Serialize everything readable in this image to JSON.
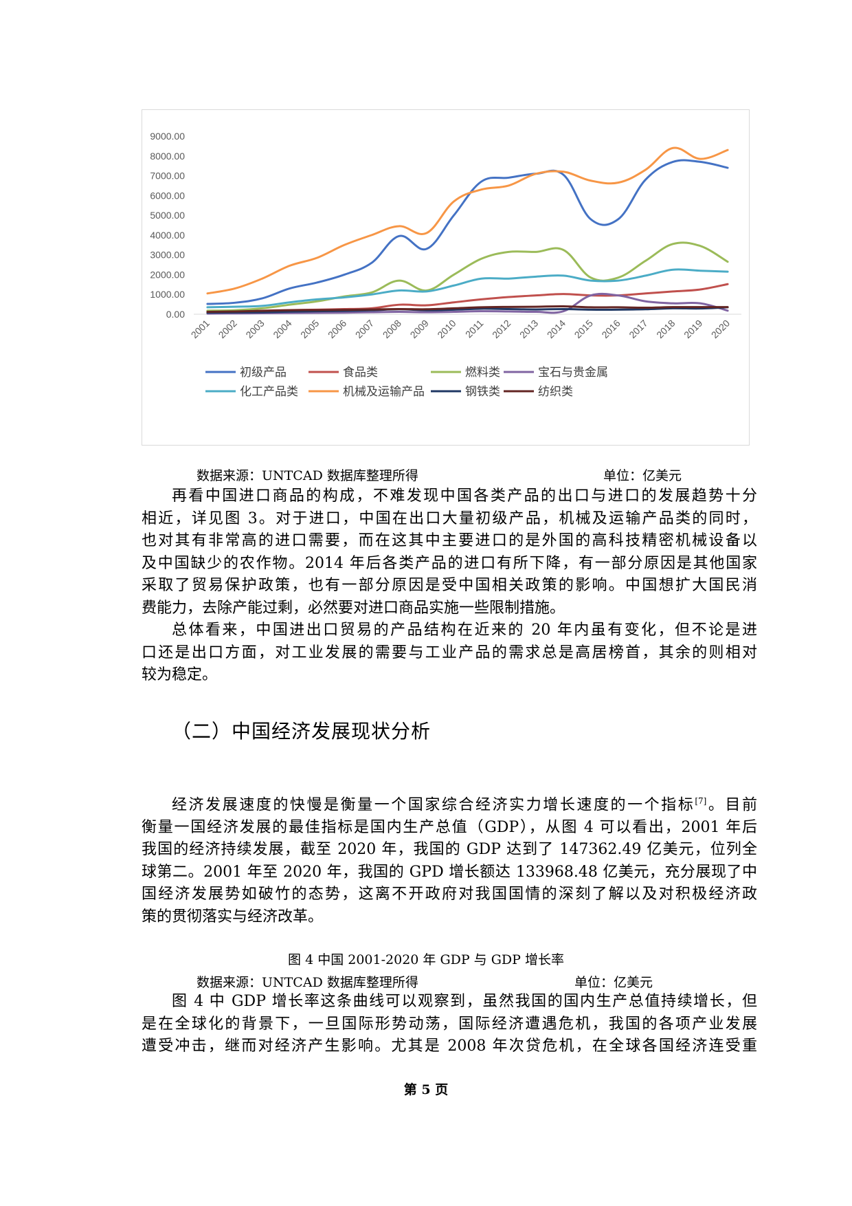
{
  "chart_data": {
    "type": "line",
    "title": "",
    "xlabel": "",
    "ylabel": "",
    "ylim": [
      0,
      9000
    ],
    "y_ticks": [
      "0.00",
      "1000.00",
      "2000.00",
      "3000.00",
      "4000.00",
      "5000.00",
      "6000.00",
      "7000.00",
      "8000.00",
      "9000.00"
    ],
    "categories": [
      "2001",
      "2002",
      "2003",
      "2004",
      "2005",
      "2006",
      "2007",
      "2008",
      "2009",
      "2010",
      "2011",
      "2012",
      "2013",
      "2014",
      "2015",
      "2016",
      "2017",
      "2018",
      "2019",
      "2020"
    ],
    "legend_position": "bottom",
    "series": [
      {
        "name": "初级产品",
        "color": "#4472C4",
        "values": [
          520,
          580,
          800,
          1300,
          1600,
          2000,
          2600,
          3950,
          3300,
          5000,
          6700,
          6900,
          7100,
          7050,
          4800,
          4800,
          6800,
          7700,
          7700,
          7400
        ]
      },
      {
        "name": "食品类",
        "color": "#C0504D",
        "values": [
          150,
          160,
          180,
          210,
          230,
          260,
          300,
          480,
          450,
          600,
          750,
          870,
          950,
          1020,
          950,
          950,
          1050,
          1150,
          1250,
          1520
        ]
      },
      {
        "name": "燃料类",
        "color": "#9BBB59",
        "values": [
          180,
          200,
          300,
          480,
          650,
          900,
          1100,
          1700,
          1200,
          2000,
          2800,
          3150,
          3150,
          3250,
          1850,
          1850,
          2700,
          3550,
          3450,
          2650
        ]
      },
      {
        "name": "宝石与贵金属",
        "color": "#8064A2",
        "values": [
          30,
          40,
          50,
          60,
          70,
          80,
          100,
          120,
          100,
          120,
          150,
          140,
          120,
          150,
          950,
          950,
          650,
          550,
          550,
          180
        ]
      },
      {
        "name": "化工产品类",
        "color": "#4BACC6",
        "values": [
          350,
          380,
          420,
          600,
          750,
          850,
          1000,
          1200,
          1150,
          1450,
          1800,
          1800,
          1900,
          1950,
          1700,
          1700,
          1950,
          2250,
          2200,
          2150
        ]
      },
      {
        "name": "机械及运输产品",
        "color": "#F79646",
        "values": [
          1050,
          1300,
          1800,
          2450,
          2850,
          3500,
          4000,
          4450,
          4100,
          5700,
          6300,
          6500,
          7100,
          7200,
          6750,
          6650,
          7300,
          8400,
          7850,
          8300
        ]
      },
      {
        "name": "钢铁类",
        "color": "#1F3864",
        "values": [
          80,
          90,
          100,
          130,
          150,
          170,
          200,
          250,
          200,
          230,
          280,
          260,
          240,
          260,
          230,
          230,
          250,
          300,
          290,
          350
        ]
      },
      {
        "name": "纺织类",
        "color": "#632523",
        "values": [
          120,
          140,
          170,
          200,
          210,
          220,
          240,
          260,
          250,
          300,
          350,
          370,
          380,
          400,
          350,
          350,
          330,
          360,
          360,
          360
        ]
      }
    ]
  },
  "chart_source": "数据来源：UNTCAD 数据库整理所得",
  "chart_unit": "单位：亿美元",
  "para1": [
    "再看中国进口商品的构成，不难发现中国各类产品的出口与进口的发展趋势十分",
    "相近，详见图 3。对于进口，中国在出口大量初级产品，机械及运输产品类的同时，",
    "也对其有非常高的进口需要，而在这其中主要进口的是外国的高科技精密机械设备以",
    "及中国缺少的农作物。2014 年后各类产品的进口有所下降，有一部分原因是其他国家",
    "采取了贸易保护政策，也有一部分原因是受中国相关政策的影响。中国想扩大国民消",
    "费能力，去除产能过剩，必然要对进口商品实施一些限制措施。"
  ],
  "para2": [
    "总体看来，中国进出口贸易的产品结构在近来的 20 年内虽有变化，但不论是进",
    "口还是出口方面，对工业发展的需要与工业产品的需求总是高居榜首，其余的则相对",
    "较为稳定。"
  ],
  "section_title": "（二）中国经济发展现状分析",
  "para3_first": "经济发展速度的快慢是衡量一个国家综合经济实力增长速度的一个指标",
  "para3_ref": "[7]",
  "para3_first_tail": "。目前",
  "para3": [
    "衡量一国经济发展的最佳指标是国内生产总值（GDP），从图 4 可以看出，2001 年后",
    "我国的经济持续发展，截至 2020 年，我国的 GDP 达到了 147362.49 亿美元，位列全",
    "球第二。2001 年至 2020 年，我国的 GPD 增长额达 133968.48 亿美元，充分展现了中",
    "国经济发展势如破竹的态势，这离不开政府对我国国情的深刻了解以及对积极经济政",
    "策的贯彻落实与经济改革。"
  ],
  "fig4_caption": "图 4  中国 2001-2020 年 GDP 与 GDP 增长率",
  "fig4_source": "数据来源：UNTCAD 数据库整理所得",
  "fig4_unit": "单位：亿美元",
  "para4": [
    "图 4 中 GDP 增长率这条曲线可以观察到，虽然我国的国内生产总值持续增长，但",
    "是在全球化的背景下，一旦国际形势动荡，国际经济遭遇危机，我国的各项产业发展",
    "遭受冲击，继而对经济产生影响。尤其是 2008 年次贷危机，在全球各国经济连受重"
  ],
  "page_number": "第 5 页"
}
